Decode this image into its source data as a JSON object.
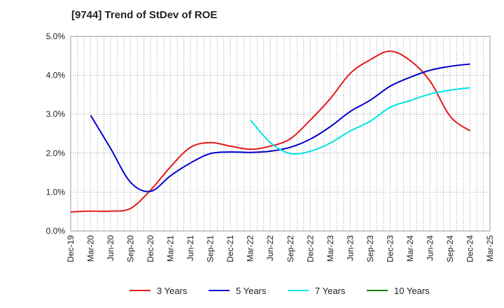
{
  "chart_data": {
    "type": "line",
    "title": "[9744]  Trend of StDev of ROE",
    "xlabel": "",
    "ylabel": "",
    "categories": [
      "Dec-19",
      "Mar-20",
      "Jun-20",
      "Sep-20",
      "Dec-20",
      "Mar-21",
      "Jun-21",
      "Sep-21",
      "Dec-21",
      "Mar-22",
      "Jun-22",
      "Sep-22",
      "Dec-22",
      "Mar-23",
      "Jun-23",
      "Sep-23",
      "Dec-23",
      "Mar-24",
      "Jun-24",
      "Sep-24",
      "Dec-24",
      "Mar-25"
    ],
    "ylim": [
      0,
      5
    ],
    "yticks": [
      "0.0%",
      "1.0%",
      "2.0%",
      "3.0%",
      "4.0%",
      "5.0%"
    ],
    "grid": true,
    "legend_position": "bottom",
    "series": [
      {
        "name": "3 Years",
        "color": "#e31a1c",
        "values": [
          0.49,
          0.51,
          0.51,
          0.58,
          1.05,
          1.65,
          2.15,
          2.27,
          2.18,
          2.1,
          2.18,
          2.37,
          2.85,
          3.4,
          4.05,
          4.4,
          4.62,
          4.38,
          3.85,
          2.95,
          2.57,
          null
        ]
      },
      {
        "name": "5 Years",
        "color": "#0000cc",
        "values": [
          null,
          2.97,
          2.12,
          1.25,
          1.02,
          1.42,
          1.75,
          1.99,
          2.03,
          2.02,
          2.05,
          2.15,
          2.36,
          2.68,
          3.07,
          3.36,
          3.72,
          3.95,
          4.13,
          4.23,
          4.29,
          null
        ]
      },
      {
        "name": "7 Years",
        "color": "#00e5e5",
        "values": [
          null,
          null,
          null,
          null,
          null,
          null,
          null,
          null,
          null,
          2.85,
          2.27,
          1.99,
          2.05,
          2.26,
          2.57,
          2.82,
          3.18,
          3.35,
          3.52,
          3.62,
          3.68,
          null
        ]
      },
      {
        "name": "10 Years",
        "color": "#008000",
        "values": [
          null,
          null,
          null,
          null,
          null,
          null,
          null,
          null,
          null,
          null,
          null,
          null,
          null,
          null,
          null,
          null,
          null,
          null,
          null,
          null,
          null,
          null
        ]
      }
    ]
  }
}
